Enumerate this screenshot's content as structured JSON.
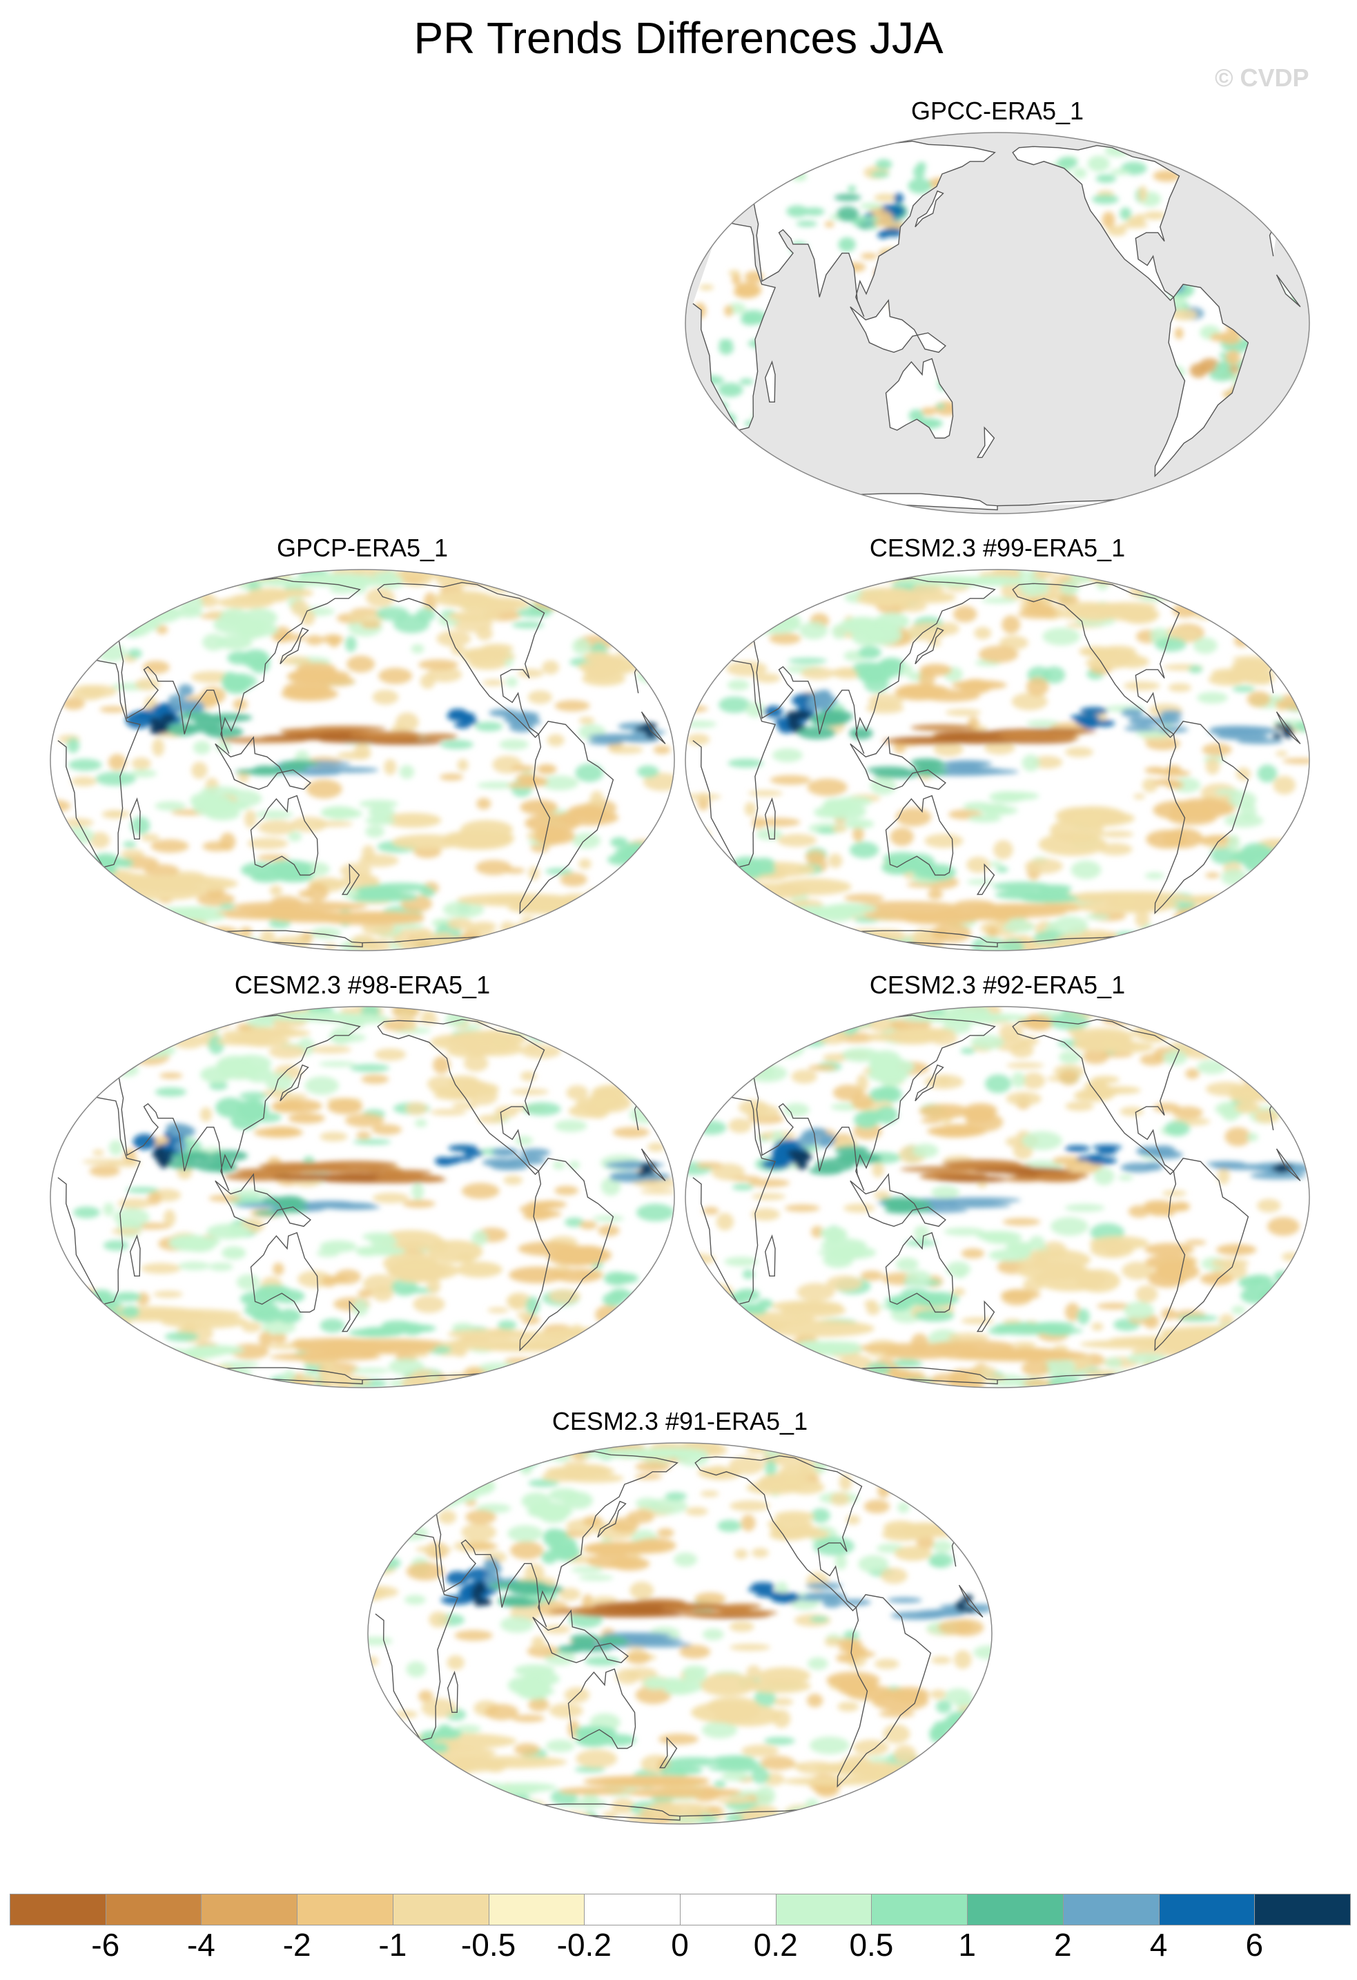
{
  "title": "PR Trends Differences JJA",
  "watermark": "© CVDP",
  "panels": [
    {
      "title": "GPCC-ERA5_1",
      "mode": "land",
      "seed": 3
    },
    {
      "title": "GPCP-ERA5_1",
      "mode": "ocean",
      "seed": 7
    },
    {
      "title": "CESM2.3 #99-ERA5_1",
      "mode": "ocean",
      "seed": 11
    },
    {
      "title": "CESM2.3 #98-ERA5_1",
      "mode": "ocean",
      "seed": 19
    },
    {
      "title": "CESM2.3 #92-ERA5_1",
      "mode": "ocean",
      "seed": 23
    },
    {
      "title": "CESM2.3 #91-ERA5_1",
      "mode": "ocean",
      "seed": 31
    }
  ],
  "colorbar": {
    "labels": [
      "-6",
      "-4",
      "-2",
      "-1",
      "-0.5",
      "-0.2",
      "0",
      "0.2",
      "0.5",
      "1",
      "2",
      "4",
      "6"
    ],
    "colors": [
      "#b46a2b",
      "#c98640",
      "#dea860",
      "#efc883",
      "#f2dca3",
      "#fbf3c7",
      "#ffffff",
      "#ffffff",
      "#c8f5cf",
      "#94e6ba",
      "#56bf98",
      "#6aa6c8",
      "#0b69ae",
      "#0a3a5e"
    ]
  },
  "map_style": {
    "missing_color": "#e5e5e5",
    "coast_color": "#555555",
    "border_color": "#888888"
  }
}
